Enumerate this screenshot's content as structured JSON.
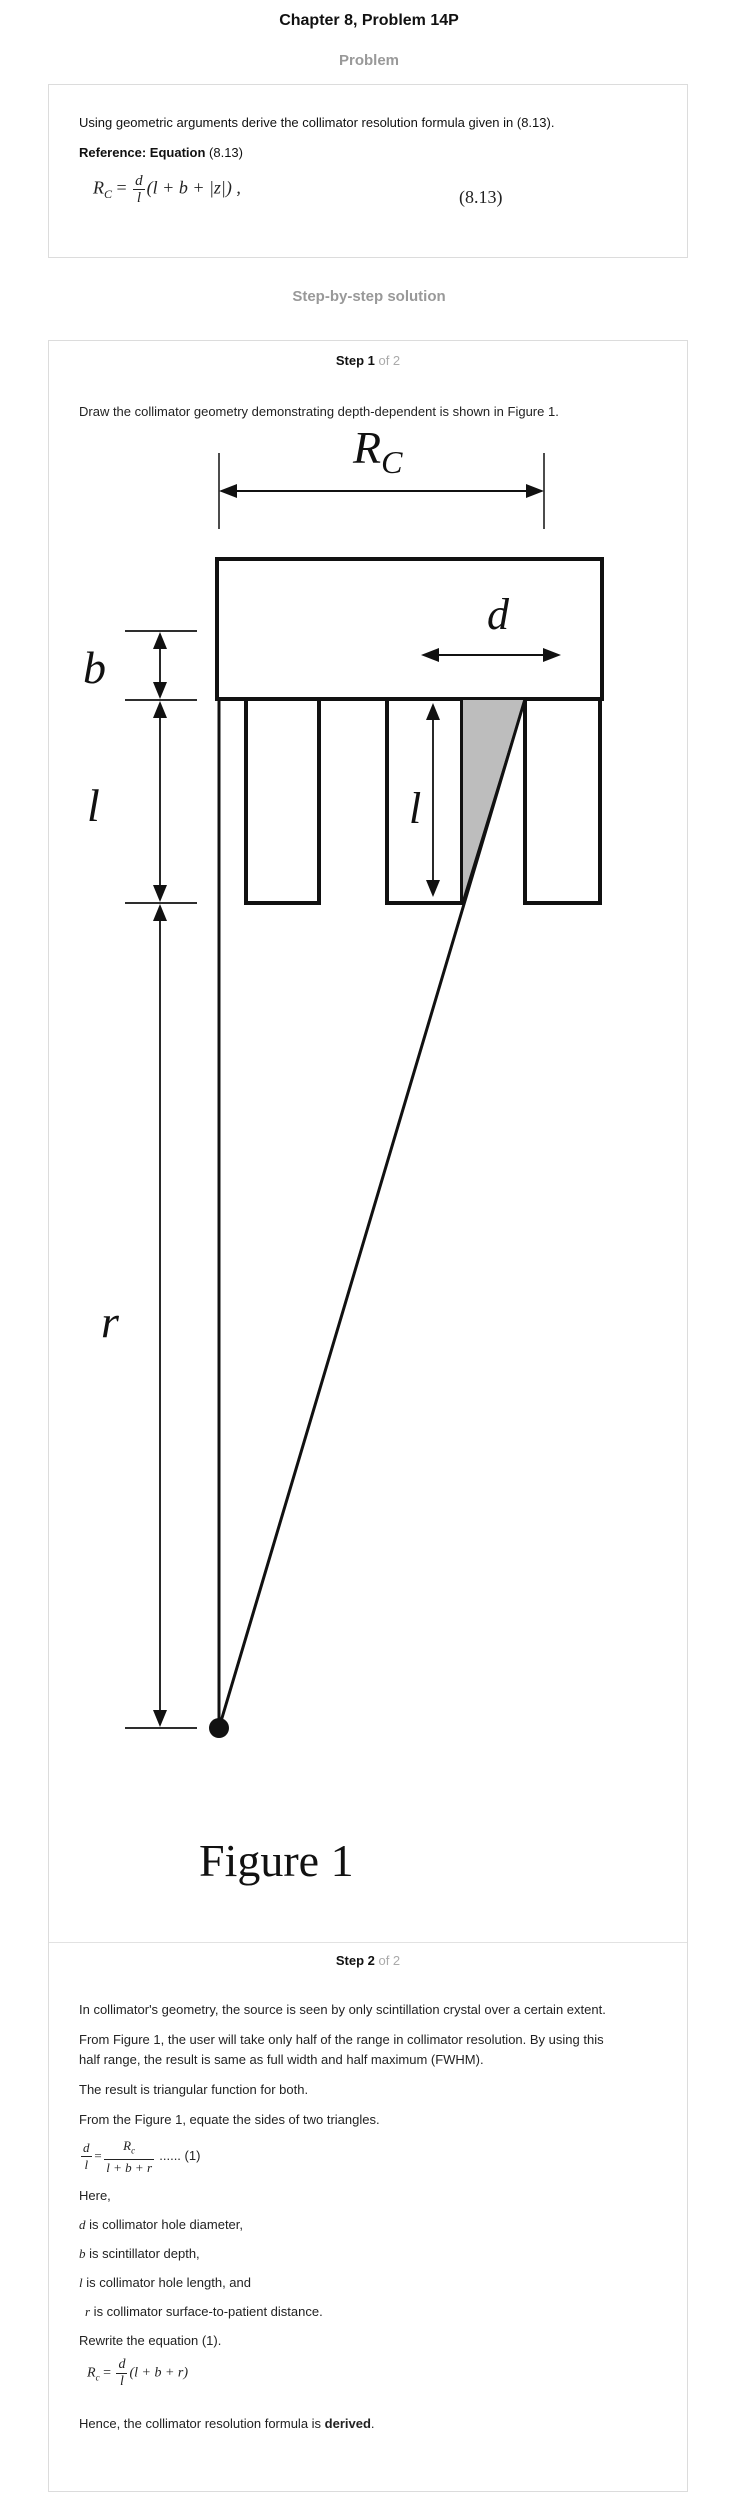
{
  "header": {
    "title": "Chapter 8, Problem 14P"
  },
  "problem": {
    "section_label": "Problem",
    "statement": "Using geometric arguments derive the collimator resolution formula given in (8.13).",
    "reference_bold": "Reference: Equation",
    "reference_rest": " (8.13)",
    "equation_lhs": "R",
    "equation_lhs_sub": "C",
    "equation_eq": "=",
    "equation_num": "d",
    "equation_den": "l",
    "equation_rhs": "(l + b + |z|) ,",
    "equation_number": "(8.13)"
  },
  "solution": {
    "section_label": "Step-by-step solution",
    "step1": {
      "label": "Step 1",
      "of": " of 2",
      "text": "Draw the collimator geometry demonstrating depth-dependent is shown in Figure 1.",
      "figure": {
        "rc_label": "R",
        "rc_sub": "C",
        "d_label": "d",
        "b_label": "b",
        "l_label": "l",
        "l_inner_label": "l",
        "r_label": "r",
        "caption": "Figure 1"
      }
    },
    "step2": {
      "label": "Step 2",
      "of": " of 2",
      "p1": "In collimator's geometry, the source is seen by only scintillation crystal over a certain extent.",
      "p2a": "From Figure 1, the user will take only half of the range in collimator resolution. By using this",
      "p2b": "half range, the result is same as full width and half maximum (FWHM).",
      "p3": "The result is triangular function for both.",
      "p4": "From the Figure 1, equate the sides of two triangles.",
      "eq1_num_left": "d",
      "eq1_den_left": "l",
      "eq1_eq": "=",
      "eq1_num_right": "R",
      "eq1_num_right_sub": "c",
      "eq1_den_right": "l + b + r",
      "eq1_tag": "...... (1)",
      "here": "Here,",
      "def_d_sym": "d",
      "def_d": " is collimator hole diameter,",
      "def_b_sym": "b",
      "def_b": " is scintillator depth,",
      "def_l_sym": "l",
      "def_l": " is collimator hole length, and",
      "def_r_sym": "r",
      "def_r": "  is collimator surface-to-patient distance.",
      "rewrite": "Rewrite the equation (1).",
      "eq2_lhs": "R",
      "eq2_lhs_sub": "c",
      "eq2_eq": "=",
      "eq2_num": "d",
      "eq2_den": "l",
      "eq2_rhs": "(l + b + r)",
      "conclusion_pre": "Hence, the collimator resolution formula is ",
      "conclusion_bold": "derived",
      "conclusion_post": "."
    }
  }
}
